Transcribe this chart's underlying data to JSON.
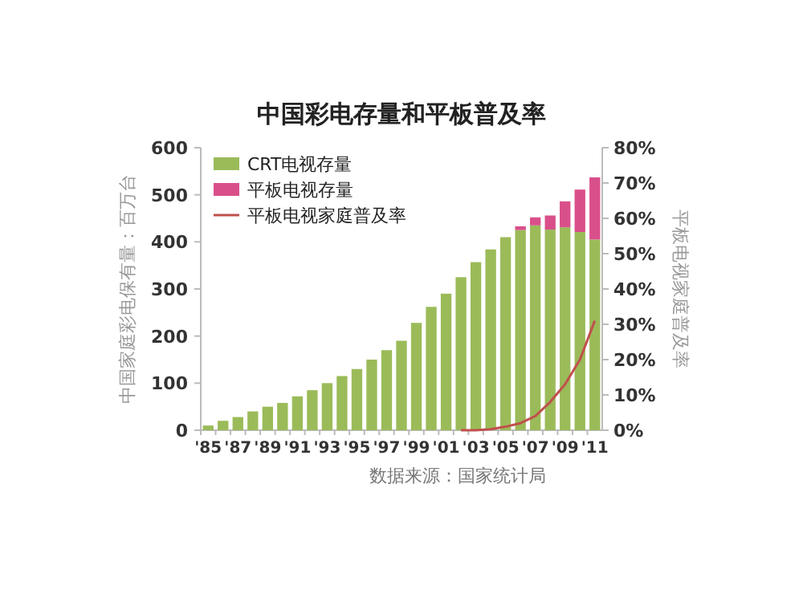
{
  "chart_data": {
    "type": "bar",
    "title": "中国彩电存量和平板普及率",
    "ylabel": "中国家庭彩电保有量：百万台",
    "y2label": "平板电视家庭普及率",
    "categories": [
      "'85",
      null,
      "'87",
      null,
      "'89",
      null,
      "'91",
      null,
      "'93",
      null,
      "'95",
      null,
      "'97",
      null,
      "'99",
      null,
      "'01",
      null,
      "'03",
      null,
      "'05",
      null,
      "'07",
      null,
      "'09",
      null,
      "'11"
    ],
    "stacked": true,
    "legend": "top left",
    "grid": false,
    "ylim": [
      0,
      600
    ],
    "yticks": [
      0,
      100,
      200,
      300,
      400,
      500,
      600
    ],
    "y2lim": [
      0,
      80
    ],
    "y2ticks": [
      {
        "value": 0,
        "label": "0%"
      },
      {
        "value": 10,
        "label": "10%"
      },
      {
        "value": 20,
        "label": "20%"
      },
      {
        "value": 30,
        "label": "30%"
      },
      {
        "value": 40,
        "label": "40%"
      },
      {
        "value": 50,
        "label": "50%"
      },
      {
        "value": 60,
        "label": "60%"
      },
      {
        "value": 70,
        "label": "70%"
      },
      {
        "value": 80,
        "label": "80%"
      }
    ],
    "series": [
      {
        "name": "CRT电视存量",
        "color": "#9bbb59",
        "values": [
          10,
          20,
          28,
          40,
          50,
          58,
          72,
          85,
          100,
          115,
          130,
          150,
          170,
          190,
          228,
          262,
          290,
          325,
          357,
          384,
          410,
          425,
          435,
          426,
          431,
          421,
          405
        ]
      },
      {
        "name": "平板电视存量",
        "color": "#d94f8a",
        "values": [
          null,
          null,
          null,
          null,
          null,
          null,
          null,
          null,
          null,
          null,
          null,
          null,
          null,
          null,
          null,
          null,
          null,
          null,
          null,
          null,
          null,
          8,
          17,
          30,
          55,
          90,
          132
        ]
      },
      {
        "name": "平板电视家庭普及率",
        "type": "line",
        "axis": "y2",
        "color": "#c0504d",
        "values": [
          null,
          null,
          null,
          null,
          null,
          null,
          null,
          null,
          null,
          null,
          null,
          null,
          null,
          null,
          null,
          null,
          null,
          0,
          0,
          0.3,
          1,
          2,
          4,
          8,
          13,
          20,
          31
        ]
      }
    ],
    "annotations": [
      "数据来源：国家统计局"
    ]
  }
}
